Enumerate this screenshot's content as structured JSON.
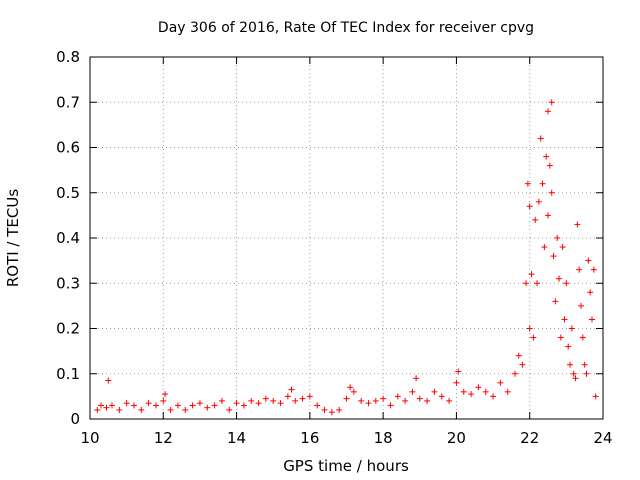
{
  "chart_data": {
    "type": "scatter",
    "title": "Day 306 of 2016, Rate Of TEC Index for receiver cpvg",
    "xlabel": "GPS time / hours",
    "ylabel": "ROTI / TECUs",
    "xlim": [
      10,
      24
    ],
    "ylim": [
      0,
      0.8
    ],
    "x_ticks": [
      10,
      12,
      14,
      16,
      18,
      20,
      22,
      24
    ],
    "x_tick_labels": [
      "10",
      "12",
      "14",
      "16",
      "18",
      "20",
      "22",
      "24"
    ],
    "y_ticks": [
      0,
      0.1,
      0.2,
      0.3,
      0.4,
      0.5,
      0.6,
      0.7,
      0.8
    ],
    "y_tick_labels": [
      "0",
      "0.1",
      "0.2",
      "0.3",
      "0.4",
      "0.5",
      "0.6",
      "0.7",
      "0.8"
    ],
    "grid": true,
    "grid_style": "dotted",
    "marker": "plus",
    "marker_color": "#ff0000",
    "series": [
      {
        "x": [
          10.2,
          10.3,
          10.45,
          10.5,
          10.6,
          10.8,
          11.0,
          11.2,
          11.4,
          11.6,
          11.8,
          12.0,
          12.05,
          12.2,
          12.4,
          12.6,
          12.8,
          13.0,
          13.2,
          13.4,
          13.6,
          13.8,
          14.0,
          14.2,
          14.4,
          14.6,
          14.8,
          15.0,
          15.2,
          15.4,
          15.5,
          15.6,
          15.8,
          16.0,
          16.2,
          16.4,
          16.6,
          16.8,
          17.0,
          17.1,
          17.2,
          17.4,
          17.6,
          17.8,
          18.0,
          18.2,
          18.4,
          18.6,
          18.8,
          18.9,
          19.0,
          19.2,
          19.4,
          19.6,
          19.8,
          20.0,
          20.05,
          20.2,
          20.4,
          20.6,
          20.8,
          21.0,
          21.2,
          21.4,
          21.6,
          21.7,
          21.8,
          21.9,
          21.95,
          22.0,
          22.0,
          22.05,
          22.1,
          22.15,
          22.2,
          22.25,
          22.3,
          22.35,
          22.4,
          22.45,
          22.5,
          22.5,
          22.55,
          22.6,
          22.6,
          22.65,
          22.7,
          22.75,
          22.8,
          22.85,
          22.9,
          22.95,
          23.0,
          23.05,
          23.1,
          23.15,
          23.2,
          23.25,
          23.3,
          23.35,
          23.4,
          23.45,
          23.5,
          23.55,
          23.6,
          23.65,
          23.7,
          23.75,
          23.8
        ],
        "y": [
          0.02,
          0.03,
          0.025,
          0.085,
          0.03,
          0.02,
          0.035,
          0.03,
          0.02,
          0.035,
          0.03,
          0.04,
          0.055,
          0.02,
          0.03,
          0.02,
          0.03,
          0.035,
          0.025,
          0.03,
          0.04,
          0.02,
          0.035,
          0.03,
          0.04,
          0.035,
          0.045,
          0.04,
          0.035,
          0.05,
          0.065,
          0.04,
          0.045,
          0.05,
          0.03,
          0.02,
          0.015,
          0.02,
          0.045,
          0.07,
          0.06,
          0.04,
          0.035,
          0.04,
          0.045,
          0.03,
          0.05,
          0.04,
          0.06,
          0.09,
          0.045,
          0.04,
          0.06,
          0.05,
          0.04,
          0.08,
          0.105,
          0.06,
          0.055,
          0.07,
          0.06,
          0.05,
          0.08,
          0.06,
          0.1,
          0.14,
          0.12,
          0.3,
          0.52,
          0.2,
          0.47,
          0.32,
          0.18,
          0.44,
          0.3,
          0.48,
          0.62,
          0.52,
          0.38,
          0.58,
          0.45,
          0.68,
          0.56,
          0.7,
          0.5,
          0.36,
          0.26,
          0.4,
          0.31,
          0.18,
          0.38,
          0.22,
          0.3,
          0.16,
          0.12,
          0.2,
          0.1,
          0.09,
          0.43,
          0.33,
          0.25,
          0.18,
          0.12,
          0.1,
          0.35,
          0.28,
          0.22,
          0.33,
          0.05
        ]
      }
    ]
  }
}
